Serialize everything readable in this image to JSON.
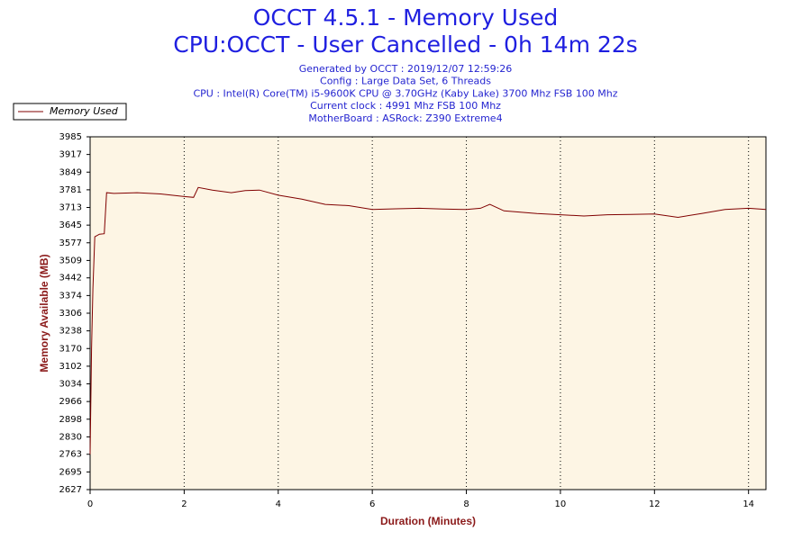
{
  "chart_data": {
    "type": "line",
    "title": "OCCT 4.5.1 - Memory Used",
    "subtitle": "CPU:OCCT - User Cancelled - 0h 14m 22s",
    "info_lines": [
      "Generated by OCCT : 2019/12/07 12:59:26",
      "Config : Large Data Set, 6 Threads",
      "CPU : Intel(R) Core(TM) i5-9600K CPU @ 3.70GHz (Kaby Lake) 3700 Mhz FSB 100 Mhz",
      "Current clock : 4991 Mhz FSB 100 Mhz",
      "MotherBoard : ASRock: Z390 Extreme4"
    ],
    "xlabel": "Duration (Minutes)",
    "ylabel": "Memory Available (MB)",
    "x": [
      0,
      0.03,
      0.06,
      0.1,
      0.2,
      0.3,
      0.35,
      0.5,
      1,
      1.5,
      2,
      2.2,
      2.3,
      2.6,
      3,
      3.3,
      3.6,
      4,
      4.5,
      5,
      5.5,
      6,
      6.5,
      7,
      7.5,
      8,
      8.3,
      8.5,
      8.8,
      9.5,
      10,
      10.5,
      11,
      11.5,
      12,
      12.5,
      13,
      13.5,
      14,
      14.37
    ],
    "series": [
      {
        "name": "Memory Used",
        "color": "#800000",
        "values": [
          2763,
          3170,
          3400,
          3600,
          3610,
          3612,
          3770,
          3767,
          3770,
          3765,
          3755,
          3752,
          3790,
          3780,
          3770,
          3778,
          3780,
          3760,
          3745,
          3725,
          3720,
          3705,
          3708,
          3710,
          3707,
          3705,
          3710,
          3725,
          3700,
          3690,
          3685,
          3680,
          3685,
          3686,
          3688,
          3675,
          3690,
          3705,
          3710,
          3705
        ]
      }
    ],
    "xlim": [
      0,
      14.37
    ],
    "ylim": [
      2627,
      3985
    ],
    "xticks": [
      0,
      2,
      4,
      6,
      8,
      10,
      12,
      14
    ],
    "yticks": [
      3985,
      3917,
      3849,
      3781,
      3713,
      3645,
      3577,
      3509,
      3442,
      3374,
      3306,
      3238,
      3170,
      3102,
      3034,
      2966,
      2898,
      2830,
      2763,
      2695,
      2627
    ],
    "grid": true
  }
}
